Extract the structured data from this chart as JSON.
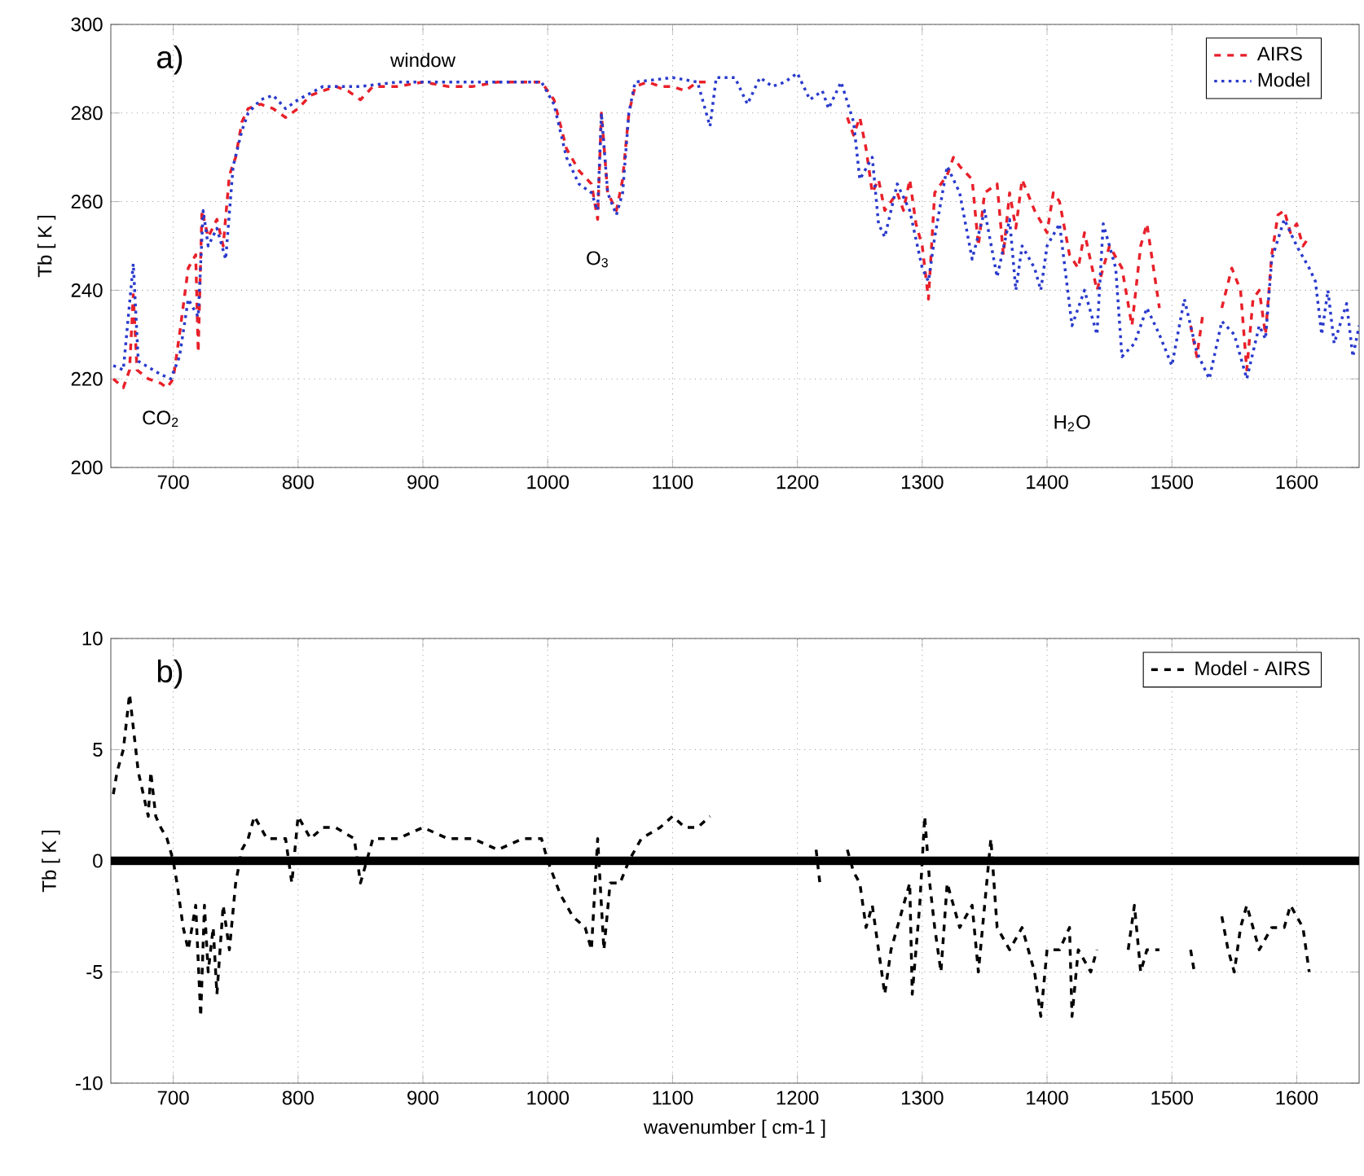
{
  "chart_data": [
    {
      "type": "line",
      "ylabel": "Tb [ K ]",
      "xlim": [
        650,
        1650
      ],
      "ylim": [
        200,
        300
      ],
      "xticks": [
        700,
        800,
        900,
        1000,
        1100,
        1200,
        1300,
        1400,
        1500,
        1600
      ],
      "yticks": [
        200,
        220,
        240,
        260,
        280,
        300
      ],
      "grid": true,
      "legend": "top right",
      "annotations": [
        "a)",
        "window",
        "O$_{3}$",
        "CO$_{2}$",
        "H$_{2}$O"
      ],
      "series": [
        {
          "name": "AIRS",
          "color": "#e8202a",
          "line_style": "dashed",
          "x": [
            652,
            660,
            665,
            668,
            671,
            680,
            690,
            695,
            700,
            705,
            712,
            718,
            720,
            723,
            728,
            735,
            740,
            745,
            750,
            755,
            760,
            770,
            780,
            790,
            800,
            810,
            820,
            830,
            840,
            850,
            860,
            880,
            900,
            920,
            940,
            960,
            980,
            995,
            1005,
            1015,
            1025,
            1035,
            1040,
            1043,
            1048,
            1055,
            1060,
            1065,
            1070,
            1080,
            1090,
            1100,
            1110,
            1120,
            1130,
            1135,
            1240,
            1245,
            1250,
            1255,
            1260,
            1265,
            1270,
            1280,
            1285,
            1290,
            1295,
            1300,
            1305,
            1310,
            1320,
            1325,
            1330,
            1340,
            1345,
            1350,
            1360,
            1365,
            1370,
            1375,
            1380,
            1390,
            1400,
            1405,
            1410,
            1418,
            1425,
            1430,
            1440,
            1450,
            1460,
            1468,
            1475,
            1480,
            1490,
            1500,
            1515,
            1520,
            1525,
            1530,
            1540,
            1548,
            1555,
            1560,
            1565,
            1570,
            1575,
            1580,
            1585,
            1590,
            1595,
            1600,
            1605,
            1610
          ],
          "values": [
            220,
            218,
            222,
            239,
            222,
            220,
            219,
            218,
            220,
            230,
            245,
            248,
            226,
            258,
            252,
            256,
            250,
            266,
            270,
            278,
            281,
            282,
            281,
            279,
            281,
            284,
            285,
            286,
            285,
            283,
            286,
            286,
            287,
            286,
            286,
            287,
            287,
            287,
            283,
            272,
            267,
            264,
            256,
            280,
            262,
            258,
            265,
            280,
            286,
            287,
            286,
            286,
            285,
            287,
            287,
            null,
            279,
            275,
            279,
            272,
            262,
            265,
            258,
            262,
            258,
            265,
            255,
            250,
            238,
            262,
            266,
            270,
            268,
            265,
            250,
            262,
            264,
            248,
            262,
            254,
            265,
            258,
            253,
            262,
            260,
            248,
            245,
            253,
            240,
            250,
            245,
            232,
            250,
            255,
            236,
            null,
            232,
            225,
            235,
            null,
            236,
            245,
            240,
            222,
            238,
            240,
            230,
            248,
            257,
            258,
            253,
            255,
            250,
            252
          ]
        },
        {
          "name": "Model",
          "color": "#2a3acc",
          "line_style": "dotted",
          "x": [
            652,
            660,
            668,
            672,
            690,
            698,
            705,
            712,
            720,
            724,
            728,
            735,
            742,
            748,
            755,
            760,
            770,
            780,
            790,
            800,
            820,
            850,
            880,
            920,
            960,
            995,
            1005,
            1015,
            1025,
            1035,
            1040,
            1043,
            1048,
            1055,
            1060,
            1065,
            1070,
            1100,
            1120,
            1130,
            1135,
            1150,
            1160,
            1170,
            1180,
            1190,
            1200,
            1210,
            1220,
            1225,
            1235,
            1245,
            1250,
            1260,
            1265,
            1270,
            1280,
            1290,
            1300,
            1305,
            1310,
            1320,
            1330,
            1340,
            1350,
            1360,
            1370,
            1375,
            1380,
            1390,
            1395,
            1400,
            1410,
            1420,
            1430,
            1440,
            1445,
            1455,
            1460,
            1470,
            1480,
            1490,
            1500,
            1510,
            1520,
            1530,
            1540,
            1550,
            1560,
            1570,
            1575,
            1580,
            1590,
            1600,
            1610,
            1615,
            1620,
            1625,
            1630,
            1640,
            1645,
            1650
          ],
          "values": [
            223,
            222,
            246,
            224,
            221,
            220,
            225,
            238,
            234,
            258,
            250,
            254,
            247,
            268,
            276,
            280,
            283,
            284,
            281,
            283,
            286,
            286,
            287,
            287,
            287,
            287,
            282,
            270,
            264,
            262,
            258,
            280,
            262,
            257,
            262,
            280,
            287,
            288,
            287,
            277,
            288,
            288,
            282,
            288,
            286,
            287,
            289,
            283,
            285,
            281,
            287,
            278,
            265,
            270,
            255,
            252,
            264,
            258,
            245,
            242,
            252,
            268,
            262,
            247,
            258,
            243,
            256,
            240,
            250,
            245,
            240,
            250,
            255,
            232,
            240,
            230,
            255,
            245,
            225,
            228,
            236,
            230,
            223,
            238,
            226,
            220,
            233,
            230,
            220,
            232,
            229,
            247,
            256,
            250,
            245,
            242,
            230,
            240,
            228,
            237,
            225,
            232
          ]
        }
      ]
    },
    {
      "type": "line",
      "xlabel": "wavenumber [ cm-1 ]",
      "ylabel": "Tb [ K ]",
      "xlim": [
        650,
        1650
      ],
      "ylim": [
        -10,
        10
      ],
      "xticks": [
        700,
        800,
        900,
        1000,
        1100,
        1200,
        1300,
        1400,
        1500,
        1600
      ],
      "yticks": [
        -10,
        -5,
        0,
        5,
        10
      ],
      "grid": true,
      "legend": "top right",
      "annotations": [
        "b)"
      ],
      "ref_lines": [
        {
          "axis": "y",
          "value": 0,
          "color": "#000000"
        }
      ],
      "series": [
        {
          "name": "Model - AIRS",
          "color": "#000000",
          "line_style": "dashed",
          "x": [
            652,
            655,
            660,
            665,
            668,
            672,
            676,
            680,
            682,
            686,
            690,
            695,
            700,
            703,
            708,
            712,
            718,
            722,
            725,
            728,
            732,
            735,
            740,
            745,
            750,
            755,
            760,
            765,
            770,
            775,
            790,
            795,
            800,
            810,
            820,
            830,
            845,
            850,
            860,
            880,
            900,
            920,
            940,
            960,
            980,
            995,
            1000,
            1010,
            1020,
            1030,
            1035,
            1040,
            1045,
            1050,
            1058,
            1065,
            1075,
            1090,
            1100,
            1110,
            1120,
            1130,
            1135,
            1215,
            1218,
            1225,
            1240,
            1245,
            1250,
            1255,
            1260,
            1265,
            1270,
            1275,
            1290,
            1292,
            1298,
            1302,
            1306,
            1310,
            1315,
            1320,
            1330,
            1340,
            1345,
            1350,
            1355,
            1360,
            1370,
            1380,
            1390,
            1395,
            1400,
            1410,
            1418,
            1420,
            1425,
            1435,
            1440,
            1450,
            1465,
            1470,
            1475,
            1480,
            1490,
            1500,
            1515,
            1518,
            1525,
            1540,
            1545,
            1550,
            1555,
            1560,
            1565,
            1570,
            1580,
            1590,
            1595,
            1600,
            1605,
            1610
          ],
          "values": [
            3,
            4,
            5,
            7.5,
            6,
            4,
            3,
            2,
            4,
            2,
            1.5,
            1,
            0,
            -1,
            -3,
            -4,
            -2,
            -7,
            -2,
            -5,
            -3,
            -6,
            -2,
            -4,
            -1,
            0.5,
            1,
            2,
            1.5,
            1,
            1,
            -1,
            2,
            1,
            1.5,
            1.5,
            1,
            -1,
            1,
            1,
            1.5,
            1,
            1,
            0.5,
            1,
            1,
            0,
            -1.5,
            -2.5,
            -3,
            -4,
            1,
            -4,
            -1,
            -1,
            0,
            1,
            1.5,
            2,
            1.5,
            1.5,
            2,
            null,
            0.5,
            -1,
            null,
            0.5,
            -0.5,
            -1,
            -3,
            -2,
            -4,
            -6,
            -4,
            -1,
            -6,
            -2,
            2,
            -1,
            -3,
            -5,
            -1,
            -3,
            -2,
            -5,
            -2,
            1,
            -3,
            -4,
            -3,
            -5,
            -7,
            -4,
            -4,
            -3,
            -7,
            -4,
            -5,
            -4,
            null,
            -4,
            -2,
            -5,
            -4,
            -4,
            null,
            -4,
            -5,
            null,
            -2.5,
            -4,
            -5,
            -3,
            -2,
            -3,
            -4,
            -3,
            -3,
            -2,
            -2.5,
            -3,
            -5
          ]
        }
      ]
    }
  ]
}
